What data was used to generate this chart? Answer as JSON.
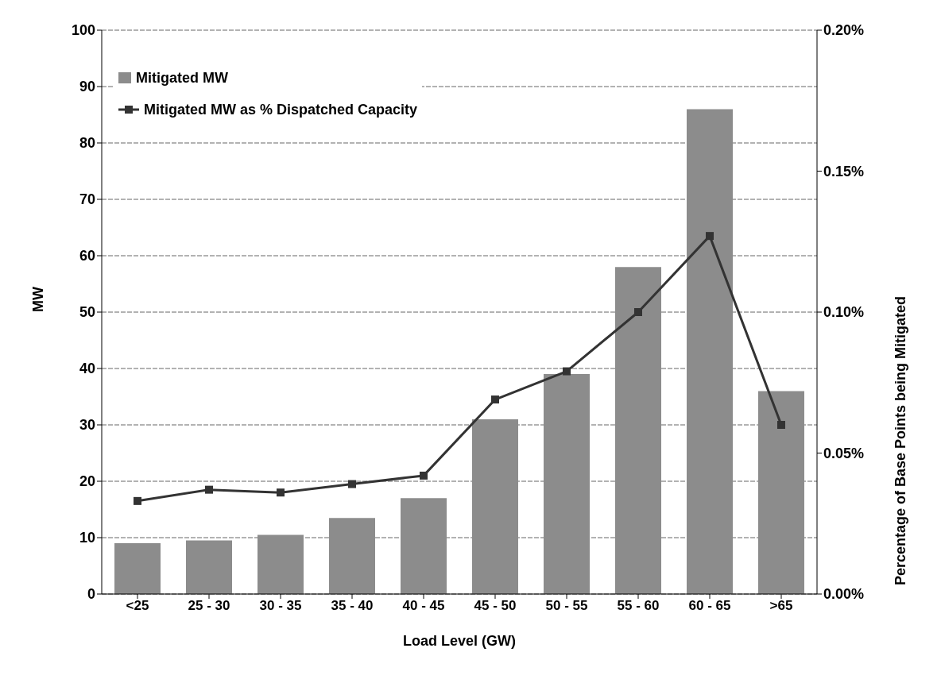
{
  "chart_data": {
    "type": "bar",
    "xlabel": "Load Level (GW)",
    "ylabel": "MW",
    "y2label": "Percentage of Base Points being Mitigated",
    "categories": [
      "<25",
      "25 - 30",
      "30 - 35",
      "35 - 40",
      "40 - 45",
      "45 - 50",
      "50 - 55",
      "55 - 60",
      "60 - 65",
      ">65"
    ],
    "series": [
      {
        "name": "Mitigated MW",
        "color": "#8c8c8c",
        "values": [
          9,
          9.5,
          10.5,
          13.5,
          17,
          31,
          39,
          58,
          86,
          36
        ]
      },
      {
        "name": "Mitigated MW as % Dispatched Capacity",
        "type": "line",
        "axis": "y2",
        "color": "#333333",
        "marker": "square",
        "values": [
          0.033,
          0.037,
          0.036,
          0.039,
          0.042,
          0.069,
          0.079,
          0.1,
          0.127,
          0.06
        ]
      }
    ],
    "ylim": [
      0,
      100
    ],
    "yticks": [
      0,
      10,
      20,
      30,
      40,
      50,
      60,
      70,
      80,
      90,
      100
    ],
    "y2lim": [
      0,
      0.2
    ],
    "y2ticks": [
      {
        "value": 0,
        "label": "0.00%"
      },
      {
        "value": 0.05,
        "label": "0.05%"
      },
      {
        "value": 0.1,
        "label": "0.10%"
      },
      {
        "value": 0.15,
        "label": "0.15%"
      },
      {
        "value": 0.2,
        "label": "0.20%"
      }
    ],
    "grid": "y",
    "legend": "top left"
  }
}
